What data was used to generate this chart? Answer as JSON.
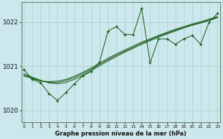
{
  "title": "Graphe pression niveau de la mer (hPa)",
  "bg_color": "#cde8ed",
  "line_color": "#1a5c1a",
  "grid_color": "#9ecece",
  "xlim": [
    -0.3,
    23.3
  ],
  "ylim": [
    1019.72,
    1022.45
  ],
  "yticks": [
    1020,
    1021,
    1022
  ],
  "xticks": [
    0,
    1,
    2,
    3,
    4,
    5,
    6,
    7,
    8,
    9,
    10,
    11,
    12,
    13,
    14,
    15,
    16,
    17,
    18,
    19,
    20,
    21,
    22,
    23
  ],
  "jagged": [
    1020.93,
    1020.7,
    1020.62,
    1020.38,
    1020.22,
    1020.4,
    1020.6,
    1020.78,
    1020.88,
    1021.1,
    1021.8,
    1021.9,
    1021.72,
    1021.72,
    1022.32,
    1021.08,
    1021.62,
    1021.62,
    1021.5,
    1021.62,
    1021.7,
    1021.5,
    1022.0,
    1022.2
  ],
  "trend1": [
    1020.78,
    1020.72,
    1020.66,
    1020.65,
    1020.66,
    1020.7,
    1020.77,
    1020.86,
    1020.96,
    1021.07,
    1021.18,
    1021.28,
    1021.37,
    1021.46,
    1021.55,
    1021.62,
    1021.7,
    1021.77,
    1021.84,
    1021.9,
    1021.96,
    1022.01,
    1022.07,
    1022.13
  ],
  "trend2": [
    1020.8,
    1020.73,
    1020.67,
    1020.63,
    1020.63,
    1020.67,
    1020.74,
    1020.83,
    1020.93,
    1021.04,
    1021.15,
    1021.25,
    1021.34,
    1021.43,
    1021.52,
    1021.6,
    1021.68,
    1021.75,
    1021.82,
    1021.88,
    1021.94,
    1021.99,
    1022.05,
    1022.11
  ],
  "trend3": [
    1020.83,
    1020.75,
    1020.68,
    1020.62,
    1020.6,
    1020.63,
    1020.7,
    1020.79,
    1020.9,
    1021.01,
    1021.12,
    1021.22,
    1021.32,
    1021.41,
    1021.5,
    1021.58,
    1021.66,
    1021.73,
    1021.8,
    1021.87,
    1021.93,
    1021.98,
    1022.04,
    1022.1
  ]
}
